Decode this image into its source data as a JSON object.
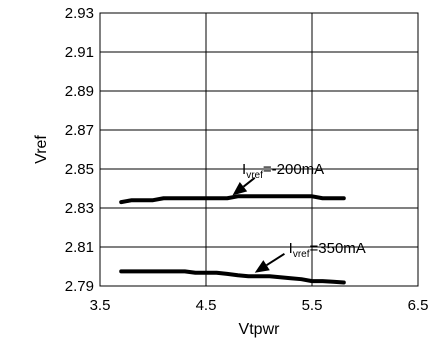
{
  "chart_data": {
    "type": "line",
    "title": "",
    "xlabel": "Vtpwr",
    "ylabel": "Vref",
    "xlim": [
      3.5,
      6.5
    ],
    "ylim": [
      2.79,
      2.93
    ],
    "x_ticks": [
      3.5,
      4.5,
      5.5,
      6.5
    ],
    "y_ticks": [
      2.79,
      2.81,
      2.83,
      2.85,
      2.87,
      2.89,
      2.91,
      2.93
    ],
    "x_tick_labels": [
      "3.5",
      "4.5",
      "5.5",
      "6.5"
    ],
    "y_tick_labels": [
      "2.79",
      "2.81",
      "2.83",
      "2.85",
      "2.87",
      "2.89",
      "2.91",
      "2.93"
    ],
    "grid": true,
    "series": [
      {
        "name": "Ivref=-200mA",
        "x": [
          3.7,
          3.8,
          3.9,
          4.0,
          4.1,
          4.2,
          4.3,
          4.4,
          4.5,
          4.6,
          4.7,
          4.8,
          4.9,
          5.0,
          5.1,
          5.2,
          5.3,
          5.4,
          5.5,
          5.6,
          5.7,
          5.8
        ],
        "y": [
          2.833,
          2.834,
          2.834,
          2.834,
          2.835,
          2.835,
          2.835,
          2.835,
          2.835,
          2.835,
          2.835,
          2.836,
          2.836,
          2.836,
          2.836,
          2.836,
          2.836,
          2.836,
          2.836,
          2.835,
          2.835,
          2.835
        ]
      },
      {
        "name": "Ivref=350mA",
        "x": [
          3.7,
          3.8,
          3.9,
          4.0,
          4.1,
          4.2,
          4.3,
          4.4,
          4.5,
          4.6,
          4.7,
          4.8,
          4.9,
          5.0,
          5.1,
          5.2,
          5.3,
          5.4,
          5.5,
          5.6,
          5.7,
          5.8
        ],
        "y": [
          2.7975,
          2.7975,
          2.7975,
          2.7975,
          2.7975,
          2.7975,
          2.7975,
          2.7968,
          2.7968,
          2.7968,
          2.7962,
          2.7955,
          2.795,
          2.795,
          2.795,
          2.7945,
          2.794,
          2.7935,
          2.7925,
          2.7925,
          2.7922,
          2.7918
        ]
      }
    ],
    "annotations": [
      {
        "label_main": "I",
        "label_sub": "vref",
        "label_rest": "=-200mA",
        "text_x": 4.84,
        "text_y": 2.8475,
        "arrow_from": [
          4.96,
          2.8455
        ],
        "arrow_to": [
          4.75,
          2.8365
        ],
        "series": "Ivref=-200mA"
      },
      {
        "label_main": "I",
        "label_sub": "vref",
        "label_rest": "=350mA",
        "text_x": 5.28,
        "text_y": 2.807,
        "arrow_from": [
          5.24,
          2.8065
        ],
        "arrow_to": [
          4.96,
          2.7968
        ],
        "series": "Ivref=350mA"
      }
    ]
  }
}
